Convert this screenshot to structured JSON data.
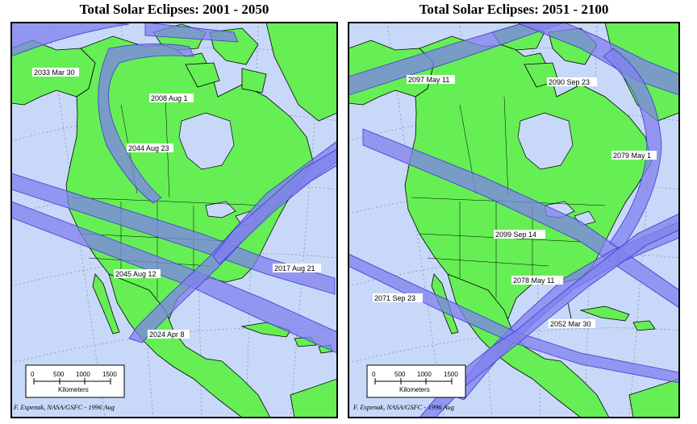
{
  "panels": [
    {
      "title": "Total Solar Eclipses: 2001 - 2050",
      "eclipses": [
        "2033 Mar 30",
        "2008 Aug 1",
        "2044 Aug 23",
        "2045 Aug 12",
        "2017 Aug 21",
        "2024 Apr 8"
      ],
      "credit": "F. Espenak, NASA/GSFC - 1996 Aug"
    },
    {
      "title": "Total Solar Eclipses: 2051 - 2100",
      "eclipses": [
        "2097 May 11",
        "2090 Sep 23",
        "2079 May 1",
        "2099 Sep 14",
        "2078 May 11",
        "2071 Sep 23",
        "2052 Mar 30"
      ],
      "credit": "F. Espenak, NASA/GSFC - 1996 Aug"
    }
  ],
  "scale": {
    "ticks": [
      "0",
      "500",
      "1000",
      "1500"
    ],
    "unit": "Kilometers"
  },
  "colors": {
    "ocean": "#c8d8f8",
    "land": "#66ee55",
    "path": "#8080ee",
    "path_edge": "#3a3ad0",
    "border": "#000000"
  }
}
